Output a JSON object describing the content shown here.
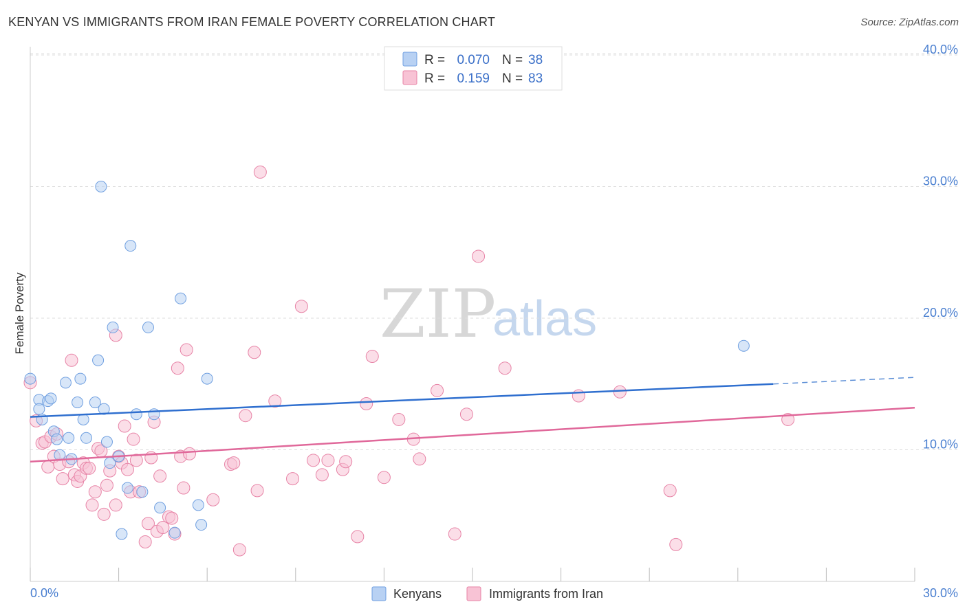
{
  "title": "KENYAN VS IMMIGRANTS FROM IRAN FEMALE POVERTY CORRELATION CHART",
  "source": "Source: ZipAtlas.com",
  "watermark": {
    "zip": "ZIP",
    "atlas": "atlas"
  },
  "legend": {
    "r_label": "R =",
    "n_label": "N =",
    "items": [
      {
        "name": "Kenyans",
        "r": "0.070",
        "n": "38",
        "color": "#6f9fe0",
        "fill": "#b8d1f3"
      },
      {
        "name": "Immigrants from Iran",
        "r": "0.159",
        "n": "83",
        "color": "#e783a6",
        "fill": "#f8c3d5"
      }
    ]
  },
  "chart_data": {
    "type": "scatter",
    "title": "KENYAN VS IMMIGRANTS FROM IRAN FEMALE POVERTY CORRELATION CHART",
    "xlabel": "",
    "ylabel": "Female Poverty",
    "xlim": [
      0,
      30
    ],
    "ylim": [
      0,
      40
    ],
    "x_tick_labels": [
      "0.0%",
      "30.0%"
    ],
    "y_ticks": [
      10,
      20,
      30,
      40
    ],
    "y_tick_labels": [
      "10.0%",
      "20.0%",
      "30.0%",
      "40.0%"
    ],
    "grid": true,
    "series": [
      {
        "name": "Kenyans",
        "color": "#5b8ed6",
        "trend": {
          "x_start": 0,
          "y_start": 12.5,
          "x_solid_end": 25.2,
          "y_solid_end": 15.0,
          "x_end": 30,
          "y_end": 15.5
        },
        "points": [
          [
            0.0,
            15.4
          ],
          [
            0.3,
            13.8
          ],
          [
            0.3,
            13.1
          ],
          [
            0.4,
            12.3
          ],
          [
            0.6,
            13.7
          ],
          [
            0.7,
            13.9
          ],
          [
            0.8,
            11.4
          ],
          [
            0.9,
            10.8
          ],
          [
            1.0,
            9.6
          ],
          [
            1.2,
            15.1
          ],
          [
            1.3,
            10.9
          ],
          [
            1.4,
            9.3
          ],
          [
            1.6,
            13.6
          ],
          [
            1.7,
            15.4
          ],
          [
            1.8,
            12.3
          ],
          [
            1.9,
            10.9
          ],
          [
            2.2,
            13.6
          ],
          [
            2.3,
            16.8
          ],
          [
            2.4,
            30.0
          ],
          [
            2.5,
            13.1
          ],
          [
            2.6,
            10.6
          ],
          [
            2.7,
            9.0
          ],
          [
            2.8,
            19.3
          ],
          [
            3.0,
            9.5
          ],
          [
            3.1,
            3.6
          ],
          [
            3.3,
            7.1
          ],
          [
            3.4,
            25.5
          ],
          [
            3.6,
            12.7
          ],
          [
            3.8,
            6.8
          ],
          [
            4.0,
            19.3
          ],
          [
            4.2,
            12.7
          ],
          [
            4.4,
            5.6
          ],
          [
            4.9,
            3.7
          ],
          [
            5.1,
            21.5
          ],
          [
            5.7,
            5.8
          ],
          [
            5.8,
            4.3
          ],
          [
            6.0,
            15.4
          ],
          [
            24.2,
            17.9
          ]
        ]
      },
      {
        "name": "Immigrants from Iran",
        "color": "#e37aa0",
        "trend": {
          "x_start": 0,
          "y_start": 9.1,
          "x_end": 30,
          "y_end": 13.2
        },
        "points": [
          [
            0.0,
            15.1
          ],
          [
            0.2,
            12.2
          ],
          [
            0.4,
            10.5
          ],
          [
            0.5,
            10.6
          ],
          [
            0.6,
            8.7
          ],
          [
            0.7,
            11.0
          ],
          [
            0.8,
            9.5
          ],
          [
            0.9,
            11.2
          ],
          [
            1.0,
            8.9
          ],
          [
            1.1,
            7.8
          ],
          [
            1.3,
            9.1
          ],
          [
            1.4,
            16.8
          ],
          [
            1.5,
            8.1
          ],
          [
            1.6,
            7.6
          ],
          [
            1.7,
            8.0
          ],
          [
            1.8,
            9.0
          ],
          [
            1.9,
            8.6
          ],
          [
            2.0,
            8.6
          ],
          [
            2.1,
            5.8
          ],
          [
            2.2,
            6.8
          ],
          [
            2.3,
            10.1
          ],
          [
            2.4,
            9.9
          ],
          [
            2.5,
            5.1
          ],
          [
            2.6,
            7.3
          ],
          [
            2.7,
            8.4
          ],
          [
            2.9,
            18.7
          ],
          [
            2.9,
            5.8
          ],
          [
            3.0,
            9.5
          ],
          [
            3.1,
            9.0
          ],
          [
            3.2,
            11.8
          ],
          [
            3.3,
            8.5
          ],
          [
            3.4,
            6.8
          ],
          [
            3.5,
            10.8
          ],
          [
            3.6,
            9.2
          ],
          [
            3.7,
            6.8
          ],
          [
            3.9,
            3.0
          ],
          [
            4.0,
            4.4
          ],
          [
            4.1,
            9.4
          ],
          [
            4.2,
            12.1
          ],
          [
            4.3,
            3.8
          ],
          [
            4.4,
            8.0
          ],
          [
            4.5,
            4.1
          ],
          [
            4.7,
            4.9
          ],
          [
            4.8,
            4.8
          ],
          [
            4.9,
            3.6
          ],
          [
            5.0,
            16.2
          ],
          [
            5.1,
            9.5
          ],
          [
            5.2,
            7.1
          ],
          [
            5.3,
            17.6
          ],
          [
            5.4,
            9.7
          ],
          [
            6.2,
            6.2
          ],
          [
            6.8,
            8.9
          ],
          [
            6.9,
            9.0
          ],
          [
            7.1,
            2.4
          ],
          [
            7.3,
            12.6
          ],
          [
            7.6,
            17.4
          ],
          [
            7.7,
            6.9
          ],
          [
            7.8,
            31.1
          ],
          [
            8.3,
            13.7
          ],
          [
            8.9,
            7.8
          ],
          [
            9.2,
            20.9
          ],
          [
            9.6,
            9.2
          ],
          [
            9.9,
            8.1
          ],
          [
            10.1,
            9.2
          ],
          [
            10.6,
            8.5
          ],
          [
            10.7,
            9.1
          ],
          [
            11.1,
            3.4
          ],
          [
            11.4,
            13.5
          ],
          [
            11.6,
            17.1
          ],
          [
            12.0,
            7.9
          ],
          [
            12.5,
            12.3
          ],
          [
            13.0,
            10.8
          ],
          [
            13.2,
            9.3
          ],
          [
            13.8,
            14.5
          ],
          [
            14.4,
            3.6
          ],
          [
            14.8,
            12.7
          ],
          [
            15.2,
            24.7
          ],
          [
            16.1,
            16.2
          ],
          [
            18.6,
            14.1
          ],
          [
            20.0,
            14.4
          ],
          [
            21.7,
            6.9
          ],
          [
            21.9,
            2.8
          ],
          [
            25.7,
            12.3
          ]
        ]
      }
    ]
  }
}
